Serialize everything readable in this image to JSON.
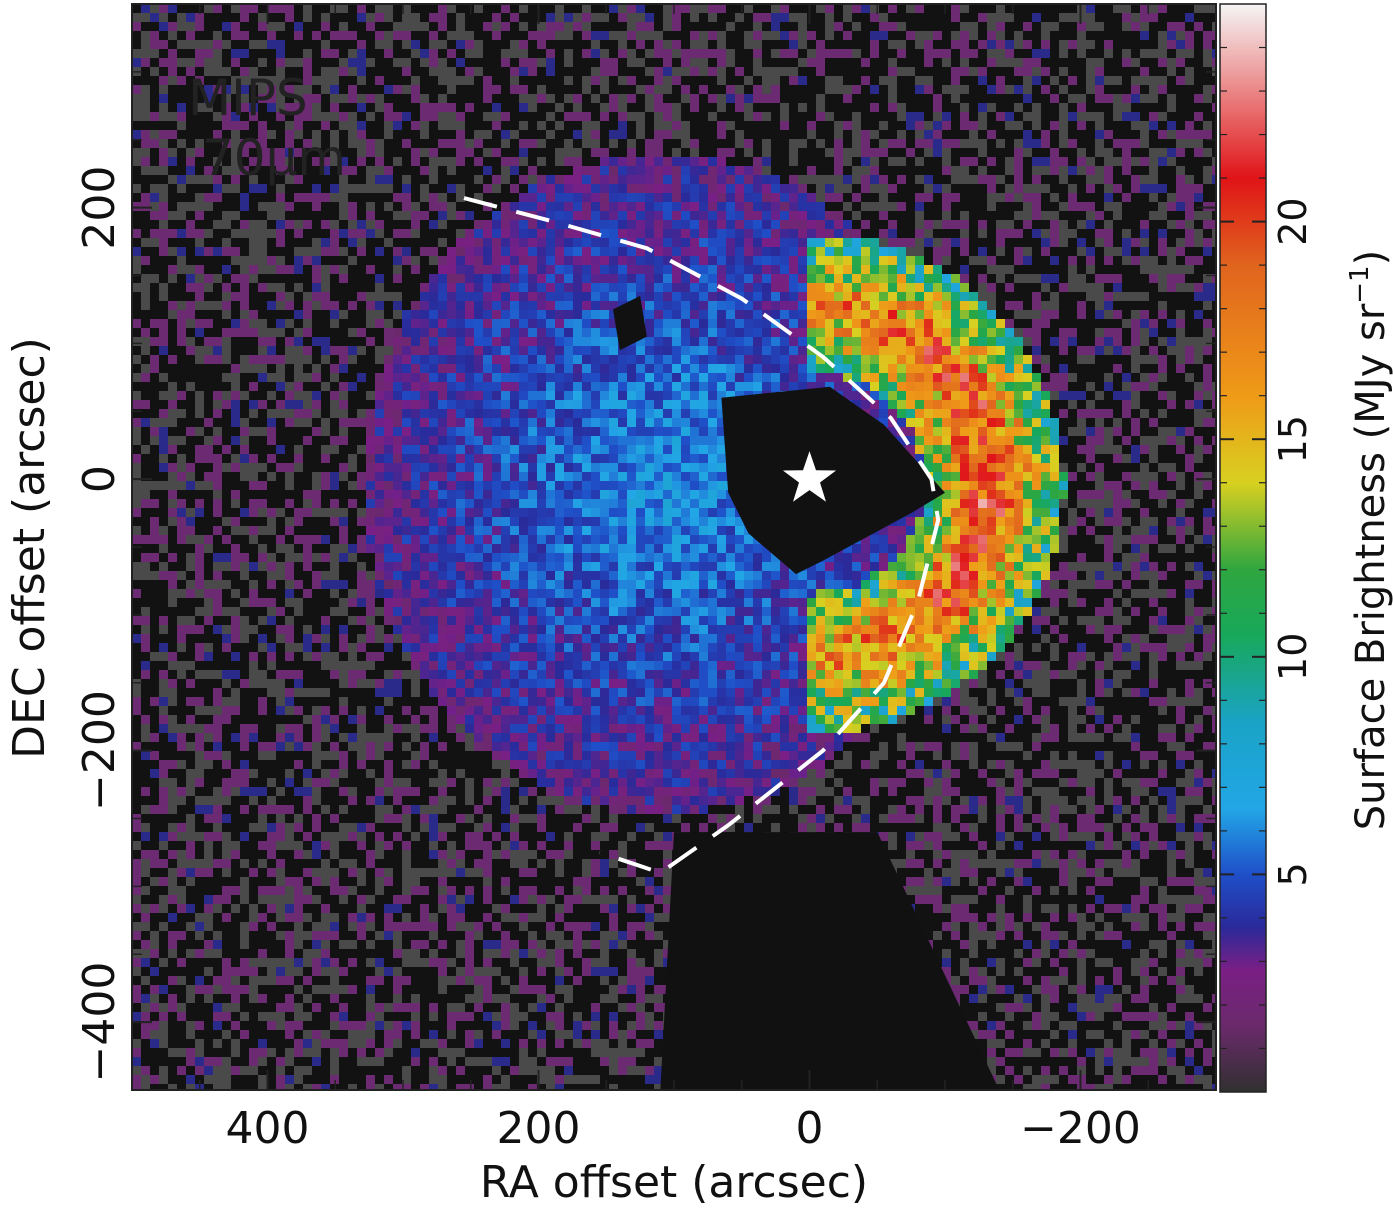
{
  "chart_data": {
    "type": "heatmap",
    "overlay_text_lines": [
      "MIPS",
      "70μm"
    ],
    "xlabel": "RA offset (arcsec)",
    "ylabel": "DEC offset (arcsec)",
    "xlim": [
      500,
      -300
    ],
    "ylim": [
      -450,
      350
    ],
    "x_axis_reversed": true,
    "x_tick_values": [
      400,
      200,
      0,
      -200
    ],
    "x_tick_labels": [
      "400",
      "200",
      "0",
      "−200"
    ],
    "y_tick_values": [
      200,
      0,
      -200,
      -400
    ],
    "y_tick_labels": [
      "200",
      "0",
      "−200",
      "−400"
    ],
    "colorbar": {
      "label": "Surface Brightness (MJy sr",
      "label_superscript": "−1",
      "label_close": ")",
      "range": [
        0,
        25
      ],
      "tick_values": [
        5,
        10,
        15,
        20
      ],
      "tick_labels": [
        "5",
        "10",
        "15",
        "20"
      ],
      "colormap_stops": [
        {
          "value": 0.0,
          "color": "#303030"
        },
        {
          "value": 1.5,
          "color": "#6a2a6a"
        },
        {
          "value": 2.8,
          "color": "#7a1f85"
        },
        {
          "value": 3.8,
          "color": "#2a2a9a"
        },
        {
          "value": 5.0,
          "color": "#1f4fc8"
        },
        {
          "value": 6.5,
          "color": "#22a6e6"
        },
        {
          "value": 8.5,
          "color": "#1aa3c6"
        },
        {
          "value": 10.5,
          "color": "#18a85a"
        },
        {
          "value": 12.0,
          "color": "#2fa640"
        },
        {
          "value": 14.0,
          "color": "#d8d020"
        },
        {
          "value": 16.0,
          "color": "#ef9a18"
        },
        {
          "value": 19.0,
          "color": "#e0641e"
        },
        {
          "value": 21.0,
          "color": "#e01418"
        },
        {
          "value": 22.5,
          "color": "#e86a6a"
        },
        {
          "value": 25.0,
          "color": "#f5f5f5"
        }
      ]
    },
    "features": {
      "star_marker": {
        "ra": 0,
        "dec": 0,
        "color": "#ffffff"
      },
      "masked_region_color": "#111111",
      "bow_shock_arc": {
        "style": "dashed",
        "color": "#ffffff",
        "points": [
          [
            255,
            207
          ],
          [
            190,
            190
          ],
          [
            120,
            170
          ],
          [
            50,
            133
          ],
          [
            -10,
            90
          ],
          [
            -60,
            45
          ],
          [
            -90,
            0
          ],
          [
            -95,
            -30
          ],
          [
            -80,
            -90
          ],
          [
            -55,
            -150
          ],
          [
            -10,
            -200
          ],
          [
            60,
            -255
          ],
          [
            110,
            -290
          ],
          [
            155,
            -275
          ]
        ]
      }
    }
  }
}
